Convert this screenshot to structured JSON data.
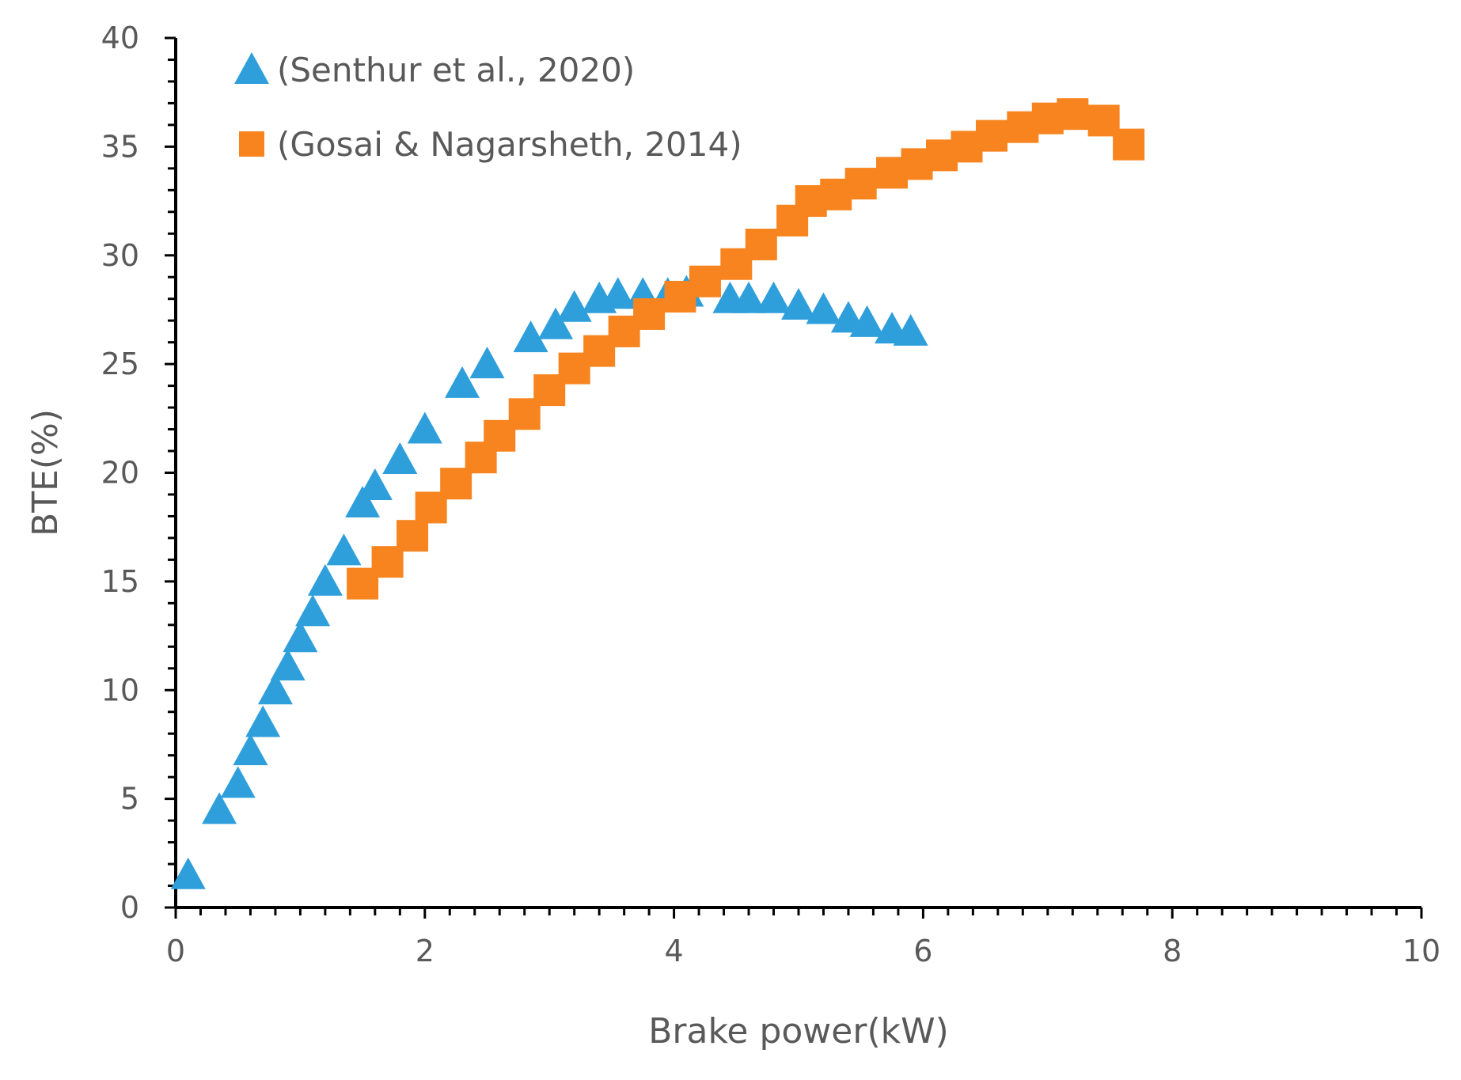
{
  "chart_data": {
    "type": "scatter",
    "title": "",
    "xlabel": "Brake power(kW)",
    "ylabel": "BTE(%)",
    "xlim": [
      0,
      10
    ],
    "ylim": [
      0,
      40
    ],
    "x_major_ticks": [
      0,
      2,
      4,
      6,
      8,
      10
    ],
    "x_tick_labels": [
      "0",
      "2",
      "4",
      "6",
      "8",
      "10"
    ],
    "x_minor_step": 0.2,
    "y_major_ticks": [
      0,
      5,
      10,
      15,
      20,
      25,
      30,
      35,
      40
    ],
    "y_tick_labels": [
      "0",
      "5",
      "10",
      "15",
      "20",
      "25",
      "30",
      "35",
      "40"
    ],
    "y_minor_step": 1,
    "grid": false,
    "legend_position": "top-left",
    "series": [
      {
        "name": "(Senthur et al., 2020)",
        "marker": "triangle",
        "color": "#2E9FDB",
        "x": [
          0.1,
          0.35,
          0.5,
          0.6,
          0.7,
          0.8,
          0.9,
          1.0,
          1.1,
          1.2,
          1.35,
          1.5,
          1.6,
          1.8,
          2.0,
          2.3,
          2.5,
          2.85,
          3.05,
          3.2,
          3.4,
          3.55,
          3.75,
          3.95,
          4.1,
          4.45,
          4.6,
          4.8,
          5.0,
          5.2,
          5.4,
          5.55,
          5.75,
          5.9
        ],
        "y": [
          1.5,
          4.5,
          5.7,
          7.2,
          8.5,
          10.0,
          11.1,
          12.4,
          13.6,
          15.0,
          16.4,
          18.6,
          19.4,
          20.6,
          22.0,
          24.1,
          25.0,
          26.2,
          26.8,
          27.6,
          28.0,
          28.2,
          28.2,
          28.2,
          28.3,
          28.0,
          28.0,
          28.0,
          27.7,
          27.5,
          27.1,
          26.9,
          26.6,
          26.5
        ]
      },
      {
        "name": "(Gosai & Nagarsheth, 2014)",
        "marker": "square",
        "color": "#F7841E",
        "x": [
          1.5,
          1.7,
          1.9,
          2.05,
          2.25,
          2.45,
          2.6,
          2.8,
          3.0,
          3.2,
          3.4,
          3.6,
          3.8,
          4.05,
          4.25,
          4.5,
          4.7,
          4.95,
          5.1,
          5.3,
          5.5,
          5.75,
          5.95,
          6.15,
          6.35,
          6.55,
          6.8,
          7.0,
          7.2,
          7.45,
          7.65
        ],
        "y": [
          14.9,
          15.9,
          17.1,
          18.4,
          19.5,
          20.7,
          21.7,
          22.7,
          23.8,
          24.8,
          25.6,
          26.5,
          27.3,
          28.1,
          28.8,
          29.6,
          30.5,
          31.6,
          32.5,
          32.8,
          33.3,
          33.8,
          34.2,
          34.6,
          35.0,
          35.5,
          35.9,
          36.3,
          36.5,
          36.2,
          35.1
        ]
      }
    ]
  }
}
